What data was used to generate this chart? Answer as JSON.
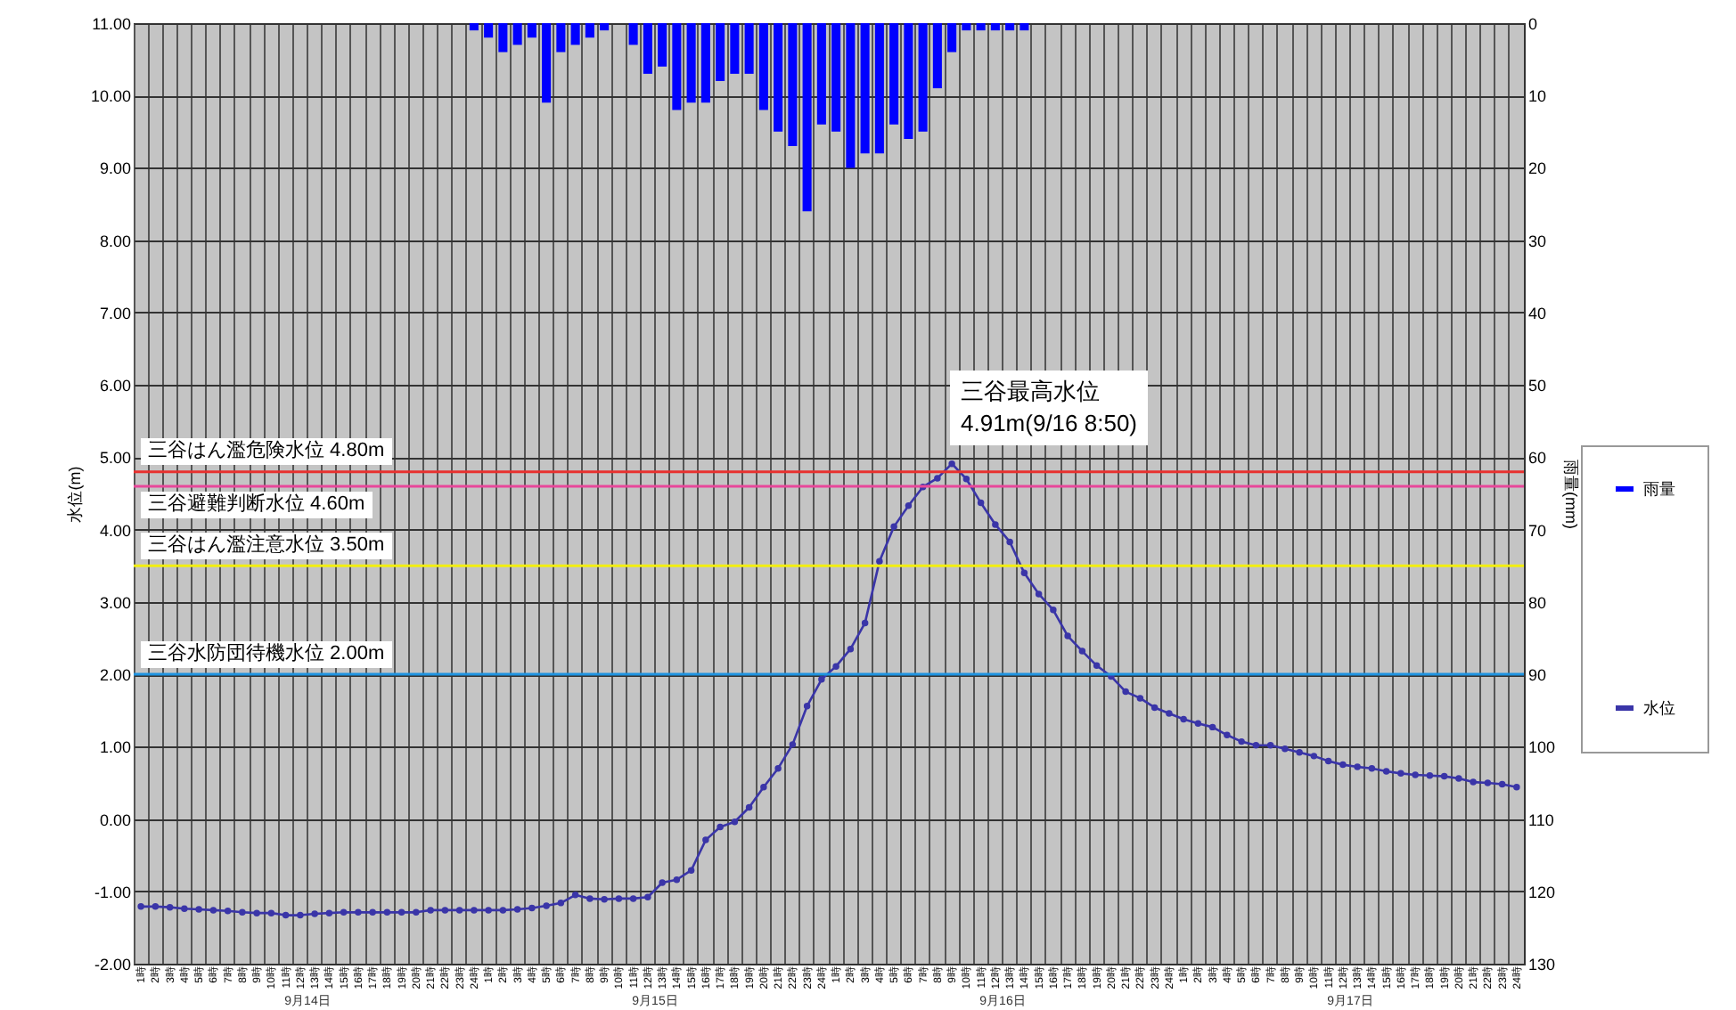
{
  "chart_data": {
    "type": "bar",
    "categories": [
      "1時",
      "2時",
      "3時",
      "4時",
      "5時",
      "6時",
      "7時",
      "8時",
      "9時",
      "10時",
      "11時",
      "12時",
      "13時",
      "14時",
      "15時",
      "16時",
      "17時",
      "18時",
      "19時",
      "20時",
      "21時",
      "22時",
      "23時",
      "24時",
      "1時",
      "2時",
      "3時",
      "4時",
      "5時",
      "6時",
      "7時",
      "8時",
      "9時",
      "10時",
      "11時",
      "12時",
      "13時",
      "14時",
      "15時",
      "16時",
      "17時",
      "18時",
      "19時",
      "20時",
      "21時",
      "22時",
      "23時",
      "24時",
      "1時",
      "2時",
      "3時",
      "4時",
      "5時",
      "6時",
      "7時",
      "8時",
      "9時",
      "10時",
      "11時",
      "12時",
      "13時",
      "14時",
      "15時",
      "16時",
      "17時",
      "18時",
      "19時",
      "20時",
      "21時",
      "22時",
      "23時",
      "24時",
      "1時",
      "2時",
      "3時",
      "4時",
      "5時",
      "6時",
      "7時",
      "8時",
      "9時",
      "10時",
      "11時",
      "12時",
      "13時",
      "14時",
      "15時",
      "16時",
      "17時",
      "18時",
      "19時",
      "20時",
      "21時",
      "22時",
      "23時",
      "24時"
    ],
    "series": [
      {
        "name": "雨量",
        "axis": "y2",
        "color": "#0000ff",
        "values": [
          0,
          0,
          0,
          0,
          0,
          0,
          0,
          0,
          0,
          0,
          0,
          0,
          0,
          0,
          0,
          0,
          0,
          0,
          0,
          0,
          0,
          0,
          0,
          1,
          2,
          4,
          3,
          2,
          11,
          4,
          3,
          2,
          1,
          0,
          3,
          7,
          6,
          12,
          11,
          11,
          8,
          7,
          7,
          12,
          15,
          17,
          26,
          14,
          15,
          20,
          18,
          18,
          14,
          16,
          15,
          9,
          4,
          1,
          1,
          1,
          1,
          1,
          0,
          0,
          0,
          0,
          0,
          0,
          0,
          0,
          0,
          0,
          0,
          0,
          0,
          0,
          0,
          0,
          0,
          0,
          0,
          0,
          0,
          0,
          0,
          0,
          0,
          0,
          0,
          0,
          0,
          0,
          0,
          0,
          0,
          0
        ]
      },
      {
        "name": "水位",
        "type": "line",
        "color": "#3a35a8",
        "values": [
          -1.21,
          -1.21,
          -1.22,
          -1.24,
          -1.25,
          -1.26,
          -1.27,
          -1.29,
          -1.3,
          -1.3,
          -1.33,
          -1.33,
          -1.31,
          -1.3,
          -1.29,
          -1.29,
          -1.29,
          -1.29,
          -1.29,
          -1.29,
          -1.26,
          -1.26,
          -1.26,
          -1.26,
          -1.26,
          -1.26,
          -1.25,
          -1.23,
          -1.2,
          -1.16,
          -1.05,
          -1.1,
          -1.11,
          -1.1,
          -1.1,
          -1.08,
          -0.88,
          -0.84,
          -0.71,
          -0.29,
          -0.11,
          -0.04,
          0.16,
          0.44,
          0.7,
          1.03,
          1.56,
          1.93,
          2.11,
          2.35,
          2.71,
          3.56,
          4.04,
          4.33,
          4.59,
          4.71,
          4.91,
          4.7,
          4.37,
          4.07,
          3.83,
          3.4,
          3.11,
          2.89,
          2.53,
          2.32,
          2.12,
          1.97,
          1.76,
          1.67,
          1.54,
          1.46,
          1.38,
          1.32,
          1.27,
          1.16,
          1.07,
          1.02,
          1.02,
          0.97,
          0.92,
          0.87,
          0.8,
          0.75,
          0.72,
          0.7,
          0.66,
          0.63,
          0.61,
          0.6,
          0.59,
          0.56,
          0.51,
          0.5,
          0.48,
          0.44
        ]
      }
    ],
    "ylabel": "水位(m)",
    "y2label": "雨量(mm)",
    "ylim": [
      -2,
      11
    ],
    "yticks": [
      {
        "value": -2,
        "label": "-2.00"
      },
      {
        "value": -1,
        "label": "-1.00"
      },
      {
        "value": 0,
        "label": "0.00"
      },
      {
        "value": 1,
        "label": "1.00"
      },
      {
        "value": 2,
        "label": "2.00"
      },
      {
        "value": 3,
        "label": "3.00"
      },
      {
        "value": 4,
        "label": "4.00"
      },
      {
        "value": 5,
        "label": "5.00"
      },
      {
        "value": 6,
        "label": "6.00"
      },
      {
        "value": 7,
        "label": "7.00"
      },
      {
        "value": 8,
        "label": "8.00"
      },
      {
        "value": 9,
        "label": "9.00"
      },
      {
        "value": 10,
        "label": "10.00"
      },
      {
        "value": 11,
        "label": "11.00"
      }
    ],
    "y2lim": [
      130,
      0
    ],
    "y2ticks": [
      0,
      10,
      20,
      30,
      40,
      50,
      60,
      70,
      80,
      90,
      100,
      110,
      120,
      130
    ],
    "ref_lines": [
      {
        "axis": "y",
        "value": 4.8,
        "label": "三谷はん濫危険水位 4.80m",
        "color": "#e8312f"
      },
      {
        "axis": "y",
        "value": 4.6,
        "label": "三谷避難判断水位 4.60m",
        "color": "#e8479a"
      },
      {
        "axis": "y",
        "value": 3.5,
        "label": "三谷はん濫注意水位 3.50m",
        "color": "#f2ee10"
      },
      {
        "axis": "y",
        "value": 2.0,
        "label": "三谷水防団待機水位 2.00m",
        "color": "#1f93e0"
      }
    ],
    "annotations": [
      "三谷最高水位\n4.91m(9/16 8:50)",
      "9月14日",
      "9月15日",
      "9月16日",
      "9月17日"
    ],
    "grid": true,
    "legend": "right",
    "marker": "circle"
  }
}
